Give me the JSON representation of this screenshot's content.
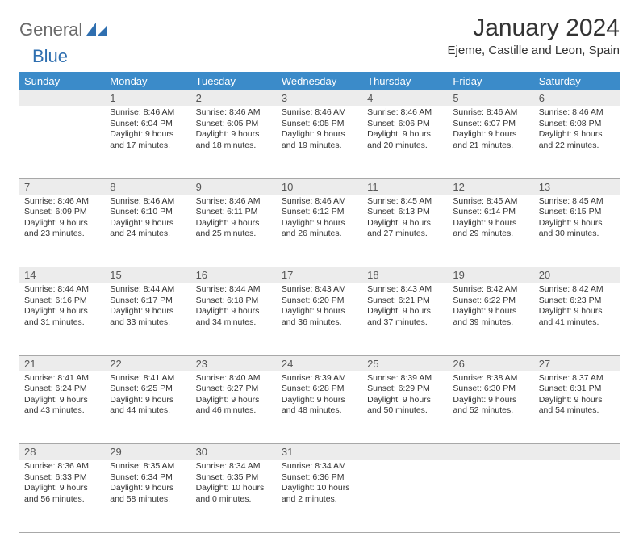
{
  "logo": {
    "part1": "General",
    "part2": "Blue"
  },
  "title": "January 2024",
  "location": "Ejeme, Castille and Leon, Spain",
  "colors": {
    "header_bg": "#3b8bc9",
    "header_text": "#ffffff",
    "daynum_bg": "#ececec",
    "border": "#a8a8a8",
    "logo_gray": "#6a6a6a",
    "logo_blue": "#2f6fb0"
  },
  "weekdays": [
    "Sunday",
    "Monday",
    "Tuesday",
    "Wednesday",
    "Thursday",
    "Friday",
    "Saturday"
  ],
  "weeks": [
    {
      "nums": [
        "",
        "1",
        "2",
        "3",
        "4",
        "5",
        "6"
      ],
      "cells": [
        {},
        {
          "sunrise": "Sunrise: 8:46 AM",
          "sunset": "Sunset: 6:04 PM",
          "day1": "Daylight: 9 hours",
          "day2": "and 17 minutes."
        },
        {
          "sunrise": "Sunrise: 8:46 AM",
          "sunset": "Sunset: 6:05 PM",
          "day1": "Daylight: 9 hours",
          "day2": "and 18 minutes."
        },
        {
          "sunrise": "Sunrise: 8:46 AM",
          "sunset": "Sunset: 6:05 PM",
          "day1": "Daylight: 9 hours",
          "day2": "and 19 minutes."
        },
        {
          "sunrise": "Sunrise: 8:46 AM",
          "sunset": "Sunset: 6:06 PM",
          "day1": "Daylight: 9 hours",
          "day2": "and 20 minutes."
        },
        {
          "sunrise": "Sunrise: 8:46 AM",
          "sunset": "Sunset: 6:07 PM",
          "day1": "Daylight: 9 hours",
          "day2": "and 21 minutes."
        },
        {
          "sunrise": "Sunrise: 8:46 AM",
          "sunset": "Sunset: 6:08 PM",
          "day1": "Daylight: 9 hours",
          "day2": "and 22 minutes."
        }
      ]
    },
    {
      "nums": [
        "7",
        "8",
        "9",
        "10",
        "11",
        "12",
        "13"
      ],
      "cells": [
        {
          "sunrise": "Sunrise: 8:46 AM",
          "sunset": "Sunset: 6:09 PM",
          "day1": "Daylight: 9 hours",
          "day2": "and 23 minutes."
        },
        {
          "sunrise": "Sunrise: 8:46 AM",
          "sunset": "Sunset: 6:10 PM",
          "day1": "Daylight: 9 hours",
          "day2": "and 24 minutes."
        },
        {
          "sunrise": "Sunrise: 8:46 AM",
          "sunset": "Sunset: 6:11 PM",
          "day1": "Daylight: 9 hours",
          "day2": "and 25 minutes."
        },
        {
          "sunrise": "Sunrise: 8:46 AM",
          "sunset": "Sunset: 6:12 PM",
          "day1": "Daylight: 9 hours",
          "day2": "and 26 minutes."
        },
        {
          "sunrise": "Sunrise: 8:45 AM",
          "sunset": "Sunset: 6:13 PM",
          "day1": "Daylight: 9 hours",
          "day2": "and 27 minutes."
        },
        {
          "sunrise": "Sunrise: 8:45 AM",
          "sunset": "Sunset: 6:14 PM",
          "day1": "Daylight: 9 hours",
          "day2": "and 29 minutes."
        },
        {
          "sunrise": "Sunrise: 8:45 AM",
          "sunset": "Sunset: 6:15 PM",
          "day1": "Daylight: 9 hours",
          "day2": "and 30 minutes."
        }
      ]
    },
    {
      "nums": [
        "14",
        "15",
        "16",
        "17",
        "18",
        "19",
        "20"
      ],
      "cells": [
        {
          "sunrise": "Sunrise: 8:44 AM",
          "sunset": "Sunset: 6:16 PM",
          "day1": "Daylight: 9 hours",
          "day2": "and 31 minutes."
        },
        {
          "sunrise": "Sunrise: 8:44 AM",
          "sunset": "Sunset: 6:17 PM",
          "day1": "Daylight: 9 hours",
          "day2": "and 33 minutes."
        },
        {
          "sunrise": "Sunrise: 8:44 AM",
          "sunset": "Sunset: 6:18 PM",
          "day1": "Daylight: 9 hours",
          "day2": "and 34 minutes."
        },
        {
          "sunrise": "Sunrise: 8:43 AM",
          "sunset": "Sunset: 6:20 PM",
          "day1": "Daylight: 9 hours",
          "day2": "and 36 minutes."
        },
        {
          "sunrise": "Sunrise: 8:43 AM",
          "sunset": "Sunset: 6:21 PM",
          "day1": "Daylight: 9 hours",
          "day2": "and 37 minutes."
        },
        {
          "sunrise": "Sunrise: 8:42 AM",
          "sunset": "Sunset: 6:22 PM",
          "day1": "Daylight: 9 hours",
          "day2": "and 39 minutes."
        },
        {
          "sunrise": "Sunrise: 8:42 AM",
          "sunset": "Sunset: 6:23 PM",
          "day1": "Daylight: 9 hours",
          "day2": "and 41 minutes."
        }
      ]
    },
    {
      "nums": [
        "21",
        "22",
        "23",
        "24",
        "25",
        "26",
        "27"
      ],
      "cells": [
        {
          "sunrise": "Sunrise: 8:41 AM",
          "sunset": "Sunset: 6:24 PM",
          "day1": "Daylight: 9 hours",
          "day2": "and 43 minutes."
        },
        {
          "sunrise": "Sunrise: 8:41 AM",
          "sunset": "Sunset: 6:25 PM",
          "day1": "Daylight: 9 hours",
          "day2": "and 44 minutes."
        },
        {
          "sunrise": "Sunrise: 8:40 AM",
          "sunset": "Sunset: 6:27 PM",
          "day1": "Daylight: 9 hours",
          "day2": "and 46 minutes."
        },
        {
          "sunrise": "Sunrise: 8:39 AM",
          "sunset": "Sunset: 6:28 PM",
          "day1": "Daylight: 9 hours",
          "day2": "and 48 minutes."
        },
        {
          "sunrise": "Sunrise: 8:39 AM",
          "sunset": "Sunset: 6:29 PM",
          "day1": "Daylight: 9 hours",
          "day2": "and 50 minutes."
        },
        {
          "sunrise": "Sunrise: 8:38 AM",
          "sunset": "Sunset: 6:30 PM",
          "day1": "Daylight: 9 hours",
          "day2": "and 52 minutes."
        },
        {
          "sunrise": "Sunrise: 8:37 AM",
          "sunset": "Sunset: 6:31 PM",
          "day1": "Daylight: 9 hours",
          "day2": "and 54 minutes."
        }
      ]
    },
    {
      "nums": [
        "28",
        "29",
        "30",
        "31",
        "",
        "",
        ""
      ],
      "cells": [
        {
          "sunrise": "Sunrise: 8:36 AM",
          "sunset": "Sunset: 6:33 PM",
          "day1": "Daylight: 9 hours",
          "day2": "and 56 minutes."
        },
        {
          "sunrise": "Sunrise: 8:35 AM",
          "sunset": "Sunset: 6:34 PM",
          "day1": "Daylight: 9 hours",
          "day2": "and 58 minutes."
        },
        {
          "sunrise": "Sunrise: 8:34 AM",
          "sunset": "Sunset: 6:35 PM",
          "day1": "Daylight: 10 hours",
          "day2": "and 0 minutes."
        },
        {
          "sunrise": "Sunrise: 8:34 AM",
          "sunset": "Sunset: 6:36 PM",
          "day1": "Daylight: 10 hours",
          "day2": "and 2 minutes."
        },
        {},
        {},
        {}
      ]
    }
  ]
}
